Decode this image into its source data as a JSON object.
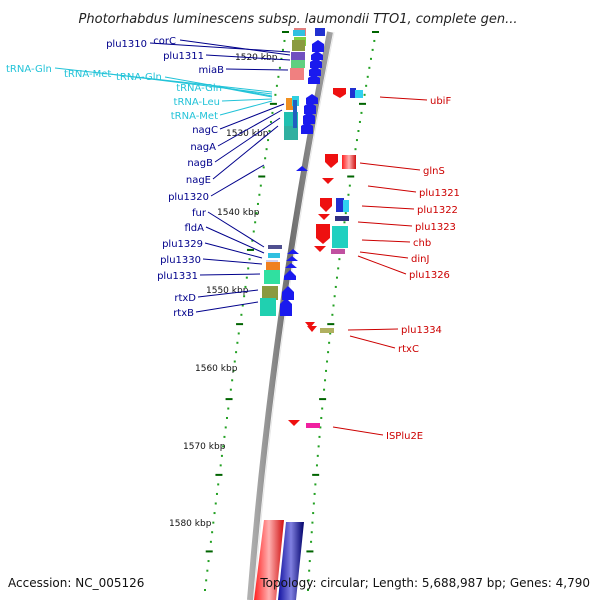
{
  "title": "Photorhabdus luminescens subsp. laumondii TTO1, complete gen...",
  "accession": "Accession: NC_005126",
  "topology": "Topology: circular; Length: 5,688,987 bp; Genes: 4,790",
  "colors": {
    "left_label": "#00008b",
    "trna_label": "#22c3d8",
    "right_label": "#cc0000",
    "tick": "#006400",
    "dot": "#22a022",
    "backbone": "#808080"
  },
  "kbp_marks": [
    "1520 kbp",
    "1530 kbp",
    "1540 kbp",
    "1550 kbp",
    "1560 kbp",
    "1570 kbp",
    "1580 kbp"
  ],
  "left_labels": [
    "plu1310",
    "corC",
    "plu1311",
    "miaB",
    "nagC",
    "nagA",
    "nagB",
    "nagE",
    "plu1320",
    "fur",
    "fldA",
    "plu1329",
    "plu1330",
    "plu1331",
    "rtxD",
    "rtxB"
  ],
  "trna_labels": [
    "tRNA-Gln",
    "tRNA-Met",
    "tRNA-Gln",
    "tRNA-Gln",
    "tRNA-Leu",
    "tRNA-Met"
  ],
  "right_labels": [
    "ubiF",
    "glnS",
    "plu1321",
    "plu1322",
    "plu1323",
    "chb",
    "dinJ",
    "plu1326",
    "plu1334",
    "rtxC",
    "ISPlu2E"
  ]
}
